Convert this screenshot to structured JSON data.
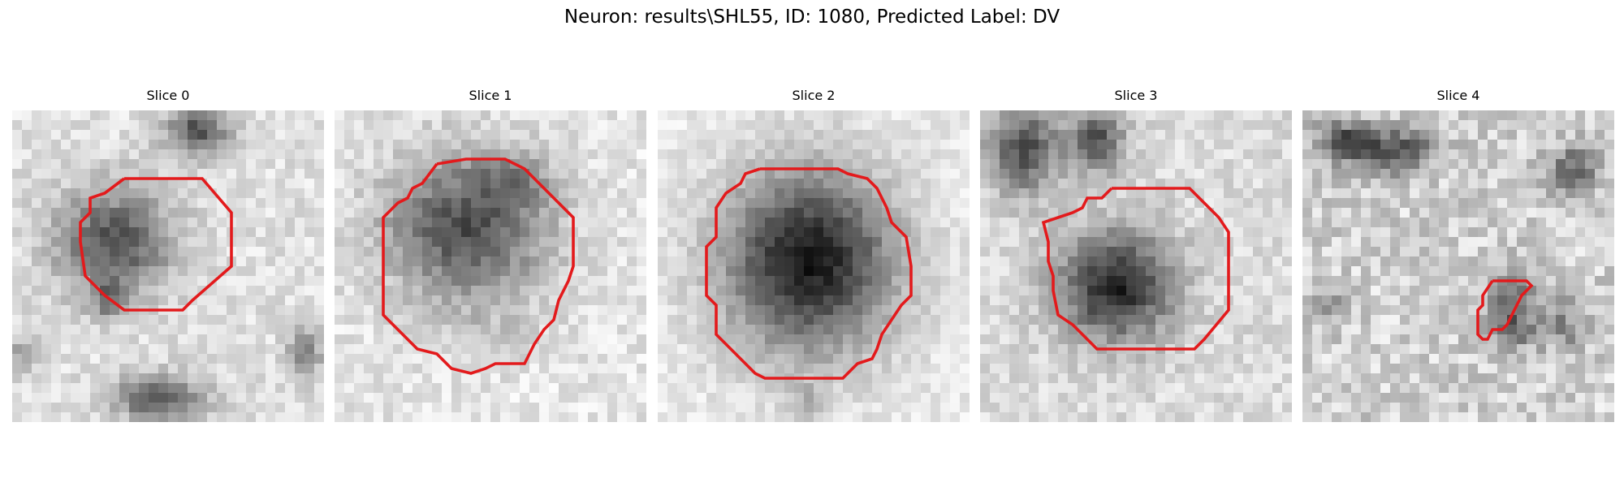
{
  "figure": {
    "title": "Neuron: results\\SHL55, ID: 1080, Predicted Label: DV",
    "contour_color": "#e31a1c",
    "colormap": "gray"
  },
  "slices": [
    {
      "title": "Slice 0"
    },
    {
      "title": "Slice 1"
    },
    {
      "title": "Slice 2"
    },
    {
      "title": "Slice 3"
    },
    {
      "title": "Slice 4"
    }
  ]
}
